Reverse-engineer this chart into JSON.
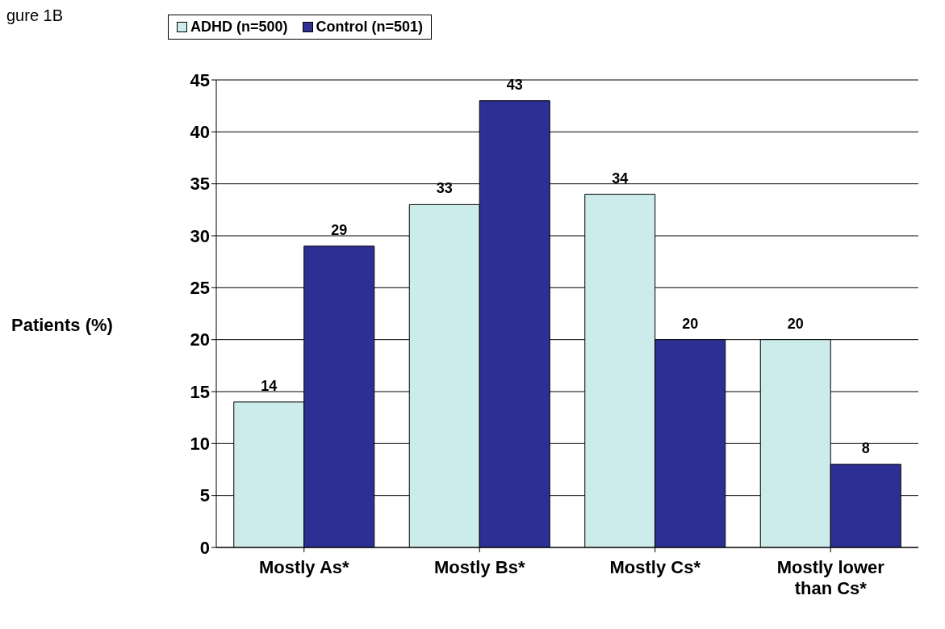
{
  "chart_data": {
    "type": "bar",
    "title": "gure 1B",
    "ylabel": "Patients (%)",
    "categories": [
      "Mostly As*",
      "Mostly Bs*",
      "Mostly Cs*",
      "Mostly lower than Cs*"
    ],
    "series": [
      {
        "name": "ADHD (n=500)",
        "color": "#ccecec",
        "values": [
          14,
          33,
          34,
          20
        ]
      },
      {
        "name": "Control (n=501)",
        "color": "#2e2f94",
        "values": [
          29,
          43,
          20,
          8
        ]
      }
    ],
    "ylim": [
      0,
      45
    ],
    "yticks": [
      0,
      5,
      10,
      15,
      20,
      25,
      30,
      35,
      40,
      45
    ],
    "grid": "y",
    "legend": "top",
    "data_labels": true
  }
}
